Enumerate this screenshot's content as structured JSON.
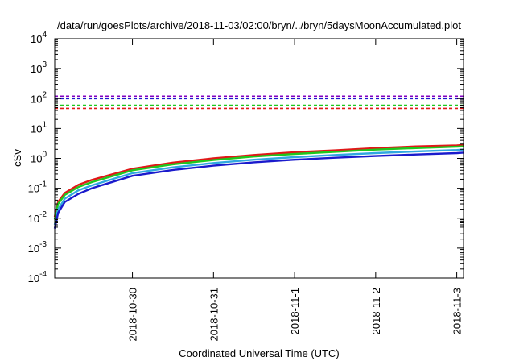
{
  "chart_data": {
    "type": "line",
    "title": "/data/run/goesPlots/archive/2018-11-03/02:00/bryn/../bryn/5daysMoonAccumulated.plot",
    "xlabel": "Coordinated Universal Time (UTC)",
    "ylabel": "cSv",
    "yscale": "log",
    "ylim": [
      0.0001,
      10000
    ],
    "xlim": [
      "2018-10-29T01:00",
      "2018-11-03T02:00"
    ],
    "x_ticks": [
      {
        "x": "2018-10-30",
        "label": "2018-10-30"
      },
      {
        "x": "2018-10-31",
        "label": "2018-10-31"
      },
      {
        "x": "2018-11-01",
        "label": "2018-11-1"
      },
      {
        "x": "2018-11-02",
        "label": "2018-11-2"
      },
      {
        "x": "2018-11-03",
        "label": "2018-11-3"
      }
    ],
    "y_ticks": [
      {
        "value": 0.0001,
        "mantissa": "10",
        "exp": "-4"
      },
      {
        "value": 0.001,
        "mantissa": "10",
        "exp": "-3"
      },
      {
        "value": 0.01,
        "mantissa": "10",
        "exp": "-2"
      },
      {
        "value": 0.1,
        "mantissa": "10",
        "exp": "-1"
      },
      {
        "value": 1,
        "mantissa": "10",
        "exp": "0"
      },
      {
        "value": 10,
        "mantissa": "10",
        "exp": "1"
      },
      {
        "value": 100,
        "mantissa": "10",
        "exp": "2"
      },
      {
        "value": 1000,
        "mantissa": "10",
        "exp": "3"
      },
      {
        "value": 10000,
        "mantissa": "10",
        "exp": "4"
      }
    ],
    "grid": false,
    "legend": "none",
    "reference_lines": [
      {
        "y": 120,
        "color": "#8000c0",
        "style": "dashed"
      },
      {
        "y": 100,
        "color": "#1a1acc",
        "style": "dashed"
      },
      {
        "y": 60,
        "color": "#1ec81e",
        "style": "dashed"
      },
      {
        "y": 47,
        "color": "#e01818",
        "style": "dashed"
      }
    ],
    "series": [
      {
        "color": "#e01818",
        "points": [
          {
            "x": "2018-10-29T01:00",
            "y": 0.011
          },
          {
            "x": "2018-10-29T02:00",
            "y": 0.035
          },
          {
            "x": "2018-10-29T04:00",
            "y": 0.07
          },
          {
            "x": "2018-10-29T08:00",
            "y": 0.13
          },
          {
            "x": "2018-10-29T12:00",
            "y": 0.19
          },
          {
            "x": "2018-10-30T00:00",
            "y": 0.45
          },
          {
            "x": "2018-10-30T12:00",
            "y": 0.72
          },
          {
            "x": "2018-10-31T00:00",
            "y": 1.0
          },
          {
            "x": "2018-10-31T12:00",
            "y": 1.3
          },
          {
            "x": "2018-11-01T00:00",
            "y": 1.6
          },
          {
            "x": "2018-11-01T12:00",
            "y": 1.85
          },
          {
            "x": "2018-11-02T00:00",
            "y": 2.2
          },
          {
            "x": "2018-11-02T12:00",
            "y": 2.5
          },
          {
            "x": "2018-11-03T00:00",
            "y": 2.7
          },
          {
            "x": "2018-11-03T02:00",
            "y": 2.8
          }
        ]
      },
      {
        "color": "#1ec81e",
        "points": [
          {
            "x": "2018-10-29T01:00",
            "y": 0.009
          },
          {
            "x": "2018-10-29T02:00",
            "y": 0.03
          },
          {
            "x": "2018-10-29T04:00",
            "y": 0.06
          },
          {
            "x": "2018-10-29T08:00",
            "y": 0.11
          },
          {
            "x": "2018-10-29T12:00",
            "y": 0.16
          },
          {
            "x": "2018-10-30T00:00",
            "y": 0.4
          },
          {
            "x": "2018-10-30T12:00",
            "y": 0.63
          },
          {
            "x": "2018-10-31T00:00",
            "y": 0.88
          },
          {
            "x": "2018-10-31T12:00",
            "y": 1.15
          },
          {
            "x": "2018-11-01T00:00",
            "y": 1.4
          },
          {
            "x": "2018-11-01T12:00",
            "y": 1.65
          },
          {
            "x": "2018-11-02T00:00",
            "y": 1.95
          },
          {
            "x": "2018-11-02T12:00",
            "y": 2.2
          },
          {
            "x": "2018-11-03T00:00",
            "y": 2.45
          },
          {
            "x": "2018-11-03T02:00",
            "y": 2.5
          }
        ]
      },
      {
        "color": "#30a8e0",
        "points": [
          {
            "x": "2018-10-29T01:00",
            "y": 0.006
          },
          {
            "x": "2018-10-29T02:00",
            "y": 0.02
          },
          {
            "x": "2018-10-29T04:00",
            "y": 0.045
          },
          {
            "x": "2018-10-29T08:00",
            "y": 0.085
          },
          {
            "x": "2018-10-29T12:00",
            "y": 0.125
          },
          {
            "x": "2018-10-30T00:00",
            "y": 0.32
          },
          {
            "x": "2018-10-30T12:00",
            "y": 0.5
          },
          {
            "x": "2018-10-31T00:00",
            "y": 0.7
          },
          {
            "x": "2018-10-31T12:00",
            "y": 0.9
          },
          {
            "x": "2018-11-01T00:00",
            "y": 1.1
          },
          {
            "x": "2018-11-01T12:00",
            "y": 1.3
          },
          {
            "x": "2018-11-02T00:00",
            "y": 1.5
          },
          {
            "x": "2018-11-02T12:00",
            "y": 1.7
          },
          {
            "x": "2018-11-03T00:00",
            "y": 1.9
          },
          {
            "x": "2018-11-03T02:00",
            "y": 1.95
          }
        ]
      },
      {
        "color": "#1a1acc",
        "points": [
          {
            "x": "2018-10-29T01:00",
            "y": 0.0045
          },
          {
            "x": "2018-10-29T02:00",
            "y": 0.015
          },
          {
            "x": "2018-10-29T04:00",
            "y": 0.035
          },
          {
            "x": "2018-10-29T08:00",
            "y": 0.065
          },
          {
            "x": "2018-10-29T12:00",
            "y": 0.1
          },
          {
            "x": "2018-10-30T00:00",
            "y": 0.26
          },
          {
            "x": "2018-10-30T12:00",
            "y": 0.41
          },
          {
            "x": "2018-10-31T00:00",
            "y": 0.57
          },
          {
            "x": "2018-10-31T12:00",
            "y": 0.74
          },
          {
            "x": "2018-11-01T00:00",
            "y": 0.9
          },
          {
            "x": "2018-11-01T12:00",
            "y": 1.05
          },
          {
            "x": "2018-11-02T00:00",
            "y": 1.2
          },
          {
            "x": "2018-11-02T12:00",
            "y": 1.35
          },
          {
            "x": "2018-11-03T00:00",
            "y": 1.5
          },
          {
            "x": "2018-11-03T02:00",
            "y": 1.55
          }
        ]
      }
    ]
  }
}
